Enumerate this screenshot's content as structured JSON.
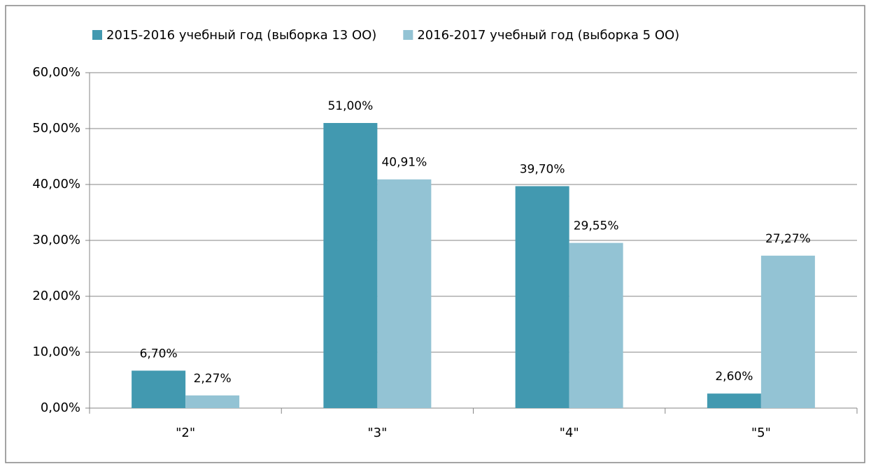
{
  "chart_data": {
    "type": "bar",
    "categories": [
      "\"2\"",
      "\"3\"",
      "\"4\"",
      "\"5\""
    ],
    "series": [
      {
        "name": "2015-2016 учебный год (выборка 13 ОО)",
        "color": "#4299b0",
        "values": [
          6.7,
          51,
          39.7,
          2.6
        ],
        "value_labels": [
          "6,70%",
          "51,00%",
          "39,70%",
          "2,60%"
        ]
      },
      {
        "name": "2016-2017 учебный год (выборка 5 ОО)",
        "color": "#93c3d4",
        "values": [
          2.27,
          40.91,
          29.55,
          27.27
        ],
        "value_labels": [
          "2,27%",
          "40,91%",
          "29,55%",
          "27,27%"
        ]
      }
    ],
    "ylim": [
      0,
      60
    ],
    "yticks": [
      {
        "value": 0,
        "label": "0,00%"
      },
      {
        "value": 10,
        "label": "10,00%"
      },
      {
        "value": 20,
        "label": "20,00%"
      },
      {
        "value": 30,
        "label": "30,00%"
      },
      {
        "value": 40,
        "label": "40,00%"
      },
      {
        "value": 50,
        "label": "50,00%"
      },
      {
        "value": 60,
        "label": "60,00%"
      }
    ],
    "grid": true,
    "legend": "top"
  }
}
